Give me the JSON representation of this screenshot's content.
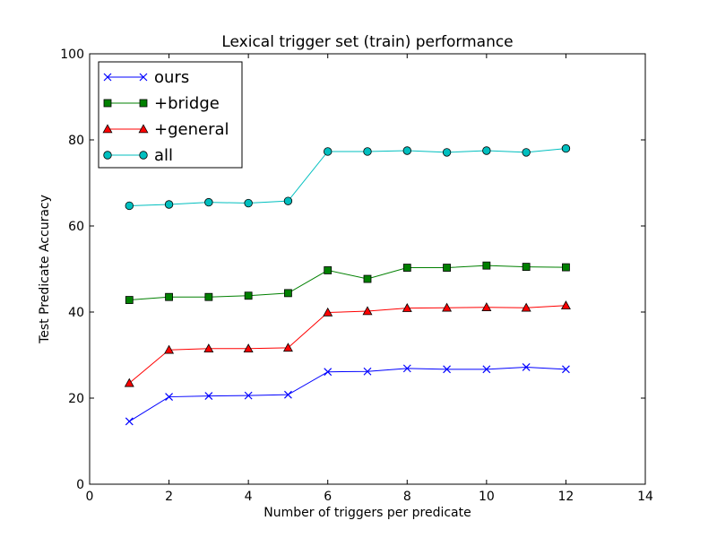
{
  "chart_data": {
    "type": "line",
    "title": "Lexical trigger set (train) performance",
    "xlabel": "Number of triggers per predicate",
    "ylabel": "Test Predicate Accuracy",
    "xlim": [
      0,
      14
    ],
    "ylim": [
      0,
      100
    ],
    "xticks": [
      0,
      2,
      4,
      6,
      8,
      10,
      12,
      14
    ],
    "yticks": [
      0,
      20,
      40,
      60,
      80,
      100
    ],
    "grid": false,
    "legend_position": "top-left",
    "x": [
      1,
      2,
      3,
      4,
      5,
      6,
      7,
      8,
      9,
      10,
      11,
      12
    ],
    "series": [
      {
        "name": "ours",
        "color": "#0000ff",
        "marker": "x",
        "values": [
          14.6,
          20.3,
          20.5,
          20.6,
          20.8,
          26.1,
          26.2,
          26.9,
          26.7,
          26.7,
          27.2,
          26.7
        ]
      },
      {
        "name": "+bridge",
        "color": "#008000",
        "marker": "square",
        "values": [
          42.8,
          43.5,
          43.5,
          43.8,
          44.4,
          49.7,
          47.7,
          50.3,
          50.3,
          50.8,
          50.5,
          50.4
        ]
      },
      {
        "name": "+general",
        "color": "#ff0000",
        "marker": "triangle",
        "values": [
          23.5,
          31.2,
          31.5,
          31.5,
          31.7,
          39.9,
          40.2,
          40.9,
          41.0,
          41.1,
          41.0,
          41.5
        ]
      },
      {
        "name": "all",
        "color": "#00bfbf",
        "marker": "circle",
        "values": [
          64.7,
          65.0,
          65.5,
          65.3,
          65.8,
          77.3,
          77.3,
          77.5,
          77.1,
          77.5,
          77.1,
          78.0
        ]
      }
    ]
  }
}
